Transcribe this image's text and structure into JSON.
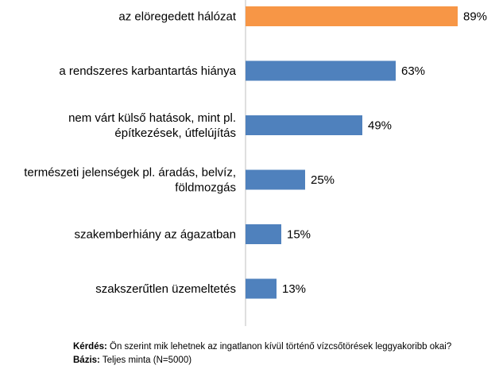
{
  "chart_data": {
    "type": "bar",
    "orientation": "horizontal",
    "categories": [
      [
        "az elöregedett hálózat"
      ],
      [
        "a rendszeres karbantartás hiánya"
      ],
      [
        "nem várt külső hatások, mint pl.",
        "építkezések, útfelújítás"
      ],
      [
        "természeti jelenségek pl. áradás, belvíz,",
        "földmozgás"
      ],
      [
        "szakemberhiány az ágazatban"
      ],
      [
        "szakszerűtlen üzemeltetés"
      ]
    ],
    "values": [
      89,
      63,
      49,
      25,
      15,
      13
    ],
    "value_labels": [
      "89%",
      "63%",
      "49%",
      "25%",
      "15%",
      "13%"
    ],
    "highlight_index": 0,
    "colors": {
      "bar": "#4f81bd",
      "highlight": "#f79646",
      "axis": "#bfbfbf"
    },
    "xlim": [
      0,
      100
    ],
    "grid": false,
    "legend": "none"
  },
  "footer": {
    "question_label": "Kérdés:",
    "question_text": " Ön szerint mik lehetnek az ingatlanon kívül történő vízcsőtörések leggyakoribb okai?",
    "base_label": "Bázis:",
    "base_text": " Teljes minta (N=5000)"
  }
}
